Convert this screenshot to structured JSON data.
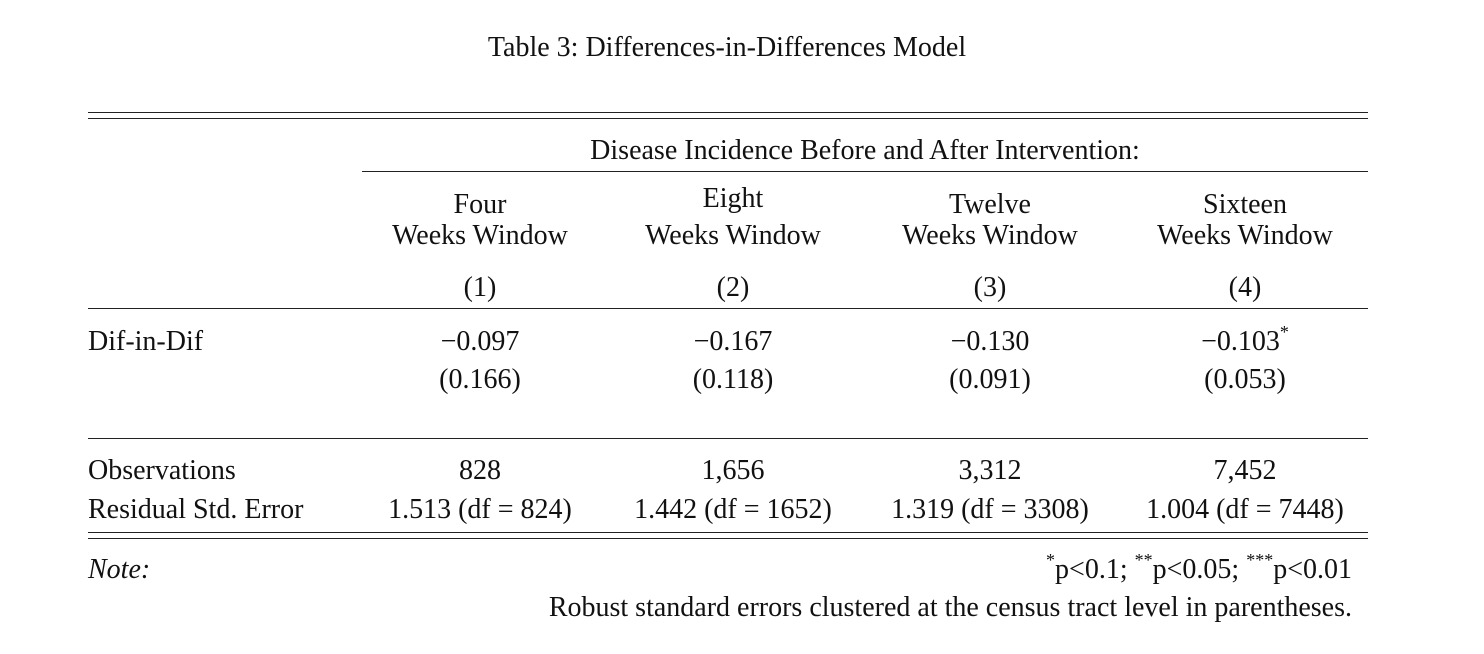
{
  "caption": "Table 3: Differences-in-Differences Model",
  "spanner": "Disease Incidence Before and After Intervention:",
  "columns": [
    {
      "line1": "Four",
      "line2": "Weeks Window",
      "num": "(1)"
    },
    {
      "line1": "Eight",
      "line2": "Weeks Window",
      "num": "(2)"
    },
    {
      "line1": "Twelve",
      "line2": "Weeks Window",
      "num": "(3)"
    },
    {
      "line1": "Sixteen",
      "line2": "Weeks Window",
      "num": "(4)"
    }
  ],
  "rows": {
    "did": {
      "label": "Dif-in-Dif",
      "coef": [
        "−0.097",
        "−0.167",
        "−0.130",
        "−0.103"
      ],
      "stars": [
        "",
        "",
        "",
        "*"
      ],
      "se": [
        "(0.166)",
        "(0.118)",
        "(0.091)",
        "(0.053)"
      ]
    },
    "obs": {
      "label": "Observations",
      "values": [
        "828",
        "1,656",
        "3,312",
        "7,452"
      ]
    },
    "rse": {
      "label": "Residual Std. Error",
      "values": [
        "1.513 (df = 824)",
        "1.442 (df = 1652)",
        "1.319 (df = 3308)",
        "1.004 (df = 7448)"
      ]
    }
  },
  "note": {
    "label": "Note:",
    "sig": {
      "s1": "*",
      "t1": "p<0.1; ",
      "s2": "**",
      "t2": "p<0.05; ",
      "s3": "***",
      "t3": "p<0.01"
    },
    "text": "Robust standard errors clustered at the census tract level in parentheses."
  }
}
